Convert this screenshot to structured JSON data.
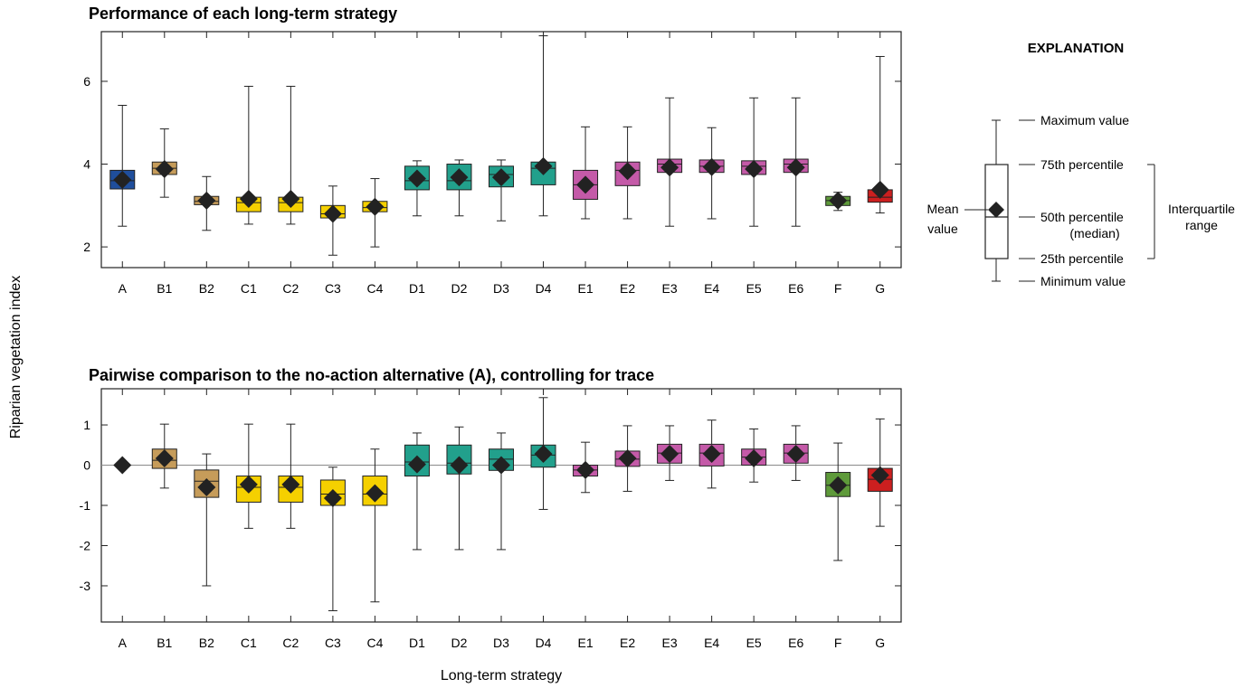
{
  "figure": {
    "ylabel": "Riparian vegetation index",
    "xlabel": "Long-term strategy"
  },
  "explanation": {
    "title": "EXPLANATION",
    "max_label": "Maximum value",
    "q3_label": "75th percentile",
    "median_label_1": "50th percentile",
    "median_label_2": "(median)",
    "q1_label": "25th percentile",
    "min_label": "Minimum value",
    "mean_label_1": "Mean",
    "mean_label_2": "value",
    "iqr_label_1": "Interquartile",
    "iqr_label_2": "range"
  },
  "colors": {
    "A": "#1f4e9c",
    "B": "#c69c5a",
    "C": "#f5d000",
    "D": "#22a08c",
    "E": "#c45aa8",
    "F": "#5e9a3a",
    "G": "#cc1f1f",
    "marker": "#222222"
  },
  "chart_data": [
    {
      "type": "box",
      "title": "Performance of each long-term strategy",
      "xlabel": "Long-term strategy",
      "ylabel": "Riparian vegetation index",
      "ylim": [
        1.5,
        7.2
      ],
      "yticks": [
        2,
        4,
        6
      ],
      "ytick_labels": [
        "2",
        "4",
        "6"
      ],
      "reference_line": null,
      "categories": [
        "A",
        "B1",
        "B2",
        "C1",
        "C2",
        "C3",
        "C4",
        "D1",
        "D2",
        "D3",
        "D4",
        "E1",
        "E2",
        "E3",
        "E4",
        "E5",
        "E6",
        "F",
        "G"
      ],
      "series": [
        {
          "category": "A",
          "group": "A",
          "min": 2.5,
          "q1": 3.4,
          "median": 3.6,
          "q3": 3.85,
          "max": 5.42,
          "mean": 3.62
        },
        {
          "category": "B1",
          "group": "B",
          "min": 3.2,
          "q1": 3.75,
          "median": 3.9,
          "q3": 4.05,
          "max": 4.85,
          "mean": 3.88
        },
        {
          "category": "B2",
          "group": "B",
          "min": 2.4,
          "q1": 3.02,
          "median": 3.1,
          "q3": 3.22,
          "max": 3.7,
          "mean": 3.12
        },
        {
          "category": "C1",
          "group": "C",
          "min": 2.55,
          "q1": 2.85,
          "median": 3.07,
          "q3": 3.2,
          "max": 5.88,
          "mean": 3.16
        },
        {
          "category": "C2",
          "group": "C",
          "min": 2.55,
          "q1": 2.85,
          "median": 3.07,
          "q3": 3.2,
          "max": 5.88,
          "mean": 3.16
        },
        {
          "category": "C3",
          "group": "C",
          "min": 1.8,
          "q1": 2.7,
          "median": 2.8,
          "q3": 3.0,
          "max": 3.47,
          "mean": 2.8
        },
        {
          "category": "C4",
          "group": "C",
          "min": 2.0,
          "q1": 2.85,
          "median": 2.95,
          "q3": 3.1,
          "max": 3.65,
          "mean": 2.97
        },
        {
          "category": "D1",
          "group": "D",
          "min": 2.75,
          "q1": 3.38,
          "median": 3.6,
          "q3": 3.95,
          "max": 4.08,
          "mean": 3.65
        },
        {
          "category": "D2",
          "group": "D",
          "min": 2.75,
          "q1": 3.38,
          "median": 3.6,
          "q3": 4.0,
          "max": 4.1,
          "mean": 3.68
        },
        {
          "category": "D3",
          "group": "D",
          "min": 2.63,
          "q1": 3.45,
          "median": 3.75,
          "q3": 3.95,
          "max": 4.1,
          "mean": 3.68
        },
        {
          "category": "D4",
          "group": "D",
          "min": 2.75,
          "q1": 3.5,
          "median": 3.9,
          "q3": 4.05,
          "max": 7.1,
          "mean": 3.95
        },
        {
          "category": "E1",
          "group": "E",
          "min": 2.68,
          "q1": 3.15,
          "median": 3.5,
          "q3": 3.85,
          "max": 4.9,
          "mean": 3.5
        },
        {
          "category": "E2",
          "group": "E",
          "min": 2.68,
          "q1": 3.48,
          "median": 3.85,
          "q3": 4.05,
          "max": 4.9,
          "mean": 3.83
        },
        {
          "category": "E3",
          "group": "E",
          "min": 2.5,
          "q1": 3.8,
          "median": 4.0,
          "q3": 4.12,
          "max": 5.6,
          "mean": 3.92
        },
        {
          "category": "E4",
          "group": "E",
          "min": 2.68,
          "q1": 3.8,
          "median": 3.95,
          "q3": 4.1,
          "max": 4.88,
          "mean": 3.93
        },
        {
          "category": "E5",
          "group": "E",
          "min": 2.5,
          "q1": 3.75,
          "median": 3.95,
          "q3": 4.08,
          "max": 5.6,
          "mean": 3.88
        },
        {
          "category": "E6",
          "group": "E",
          "min": 2.5,
          "q1": 3.8,
          "median": 4.0,
          "q3": 4.12,
          "max": 5.6,
          "mean": 3.92
        },
        {
          "category": "F",
          "group": "F",
          "min": 2.88,
          "q1": 3.0,
          "median": 3.12,
          "q3": 3.22,
          "max": 3.32,
          "mean": 3.12
        },
        {
          "category": "G",
          "group": "G",
          "min": 2.82,
          "q1": 3.08,
          "median": 3.2,
          "q3": 3.38,
          "max": 6.6,
          "mean": 3.38
        }
      ]
    },
    {
      "type": "box",
      "title": "Pairwise comparison to the no-action alternative (A), controlling for trace",
      "xlabel": "Long-term strategy",
      "ylabel": "Riparian vegetation index",
      "ylim": [
        -3.9,
        1.9
      ],
      "yticks": [
        1,
        0,
        -1,
        -2,
        -3
      ],
      "ytick_labels": [
        "1",
        "0",
        "-1",
        "-2",
        "-3"
      ],
      "reference_line": 0,
      "categories": [
        "A",
        "B1",
        "B2",
        "C1",
        "C2",
        "C3",
        "C4",
        "D1",
        "D2",
        "D3",
        "D4",
        "E1",
        "E2",
        "E3",
        "E4",
        "E5",
        "E6",
        "F",
        "G"
      ],
      "series": [
        {
          "category": "A",
          "group": "A",
          "min": 0,
          "q1": 0,
          "median": 0,
          "q3": 0,
          "max": 0,
          "mean": 0
        },
        {
          "category": "B1",
          "group": "B",
          "min": -0.57,
          "q1": -0.08,
          "median": 0.12,
          "q3": 0.4,
          "max": 1.02,
          "mean": 0.17
        },
        {
          "category": "B2",
          "group": "B",
          "min": -3.0,
          "q1": -0.8,
          "median": -0.4,
          "q3": -0.12,
          "max": 0.28,
          "mean": -0.55
        },
        {
          "category": "C1",
          "group": "C",
          "min": -1.57,
          "q1": -0.92,
          "median": -0.55,
          "q3": -0.27,
          "max": 1.02,
          "mean": -0.48
        },
        {
          "category": "C2",
          "group": "C",
          "min": -1.57,
          "q1": -0.92,
          "median": -0.55,
          "q3": -0.27,
          "max": 1.02,
          "mean": -0.48
        },
        {
          "category": "C3",
          "group": "C",
          "min": -3.62,
          "q1": -1.0,
          "median": -0.72,
          "q3": -0.37,
          "max": -0.05,
          "mean": -0.82
        },
        {
          "category": "C4",
          "group": "C",
          "min": -3.4,
          "q1": -1.0,
          "median": -0.72,
          "q3": -0.27,
          "max": 0.4,
          "mean": -0.7
        },
        {
          "category": "D1",
          "group": "D",
          "min": -2.1,
          "q1": -0.27,
          "median": 0.08,
          "q3": 0.5,
          "max": 0.8,
          "mean": 0.02
        },
        {
          "category": "D2",
          "group": "D",
          "min": -2.1,
          "q1": -0.22,
          "median": 0.05,
          "q3": 0.5,
          "max": 0.95,
          "mean": 0.0
        },
        {
          "category": "D3",
          "group": "D",
          "min": -2.1,
          "q1": -0.13,
          "median": 0.15,
          "q3": 0.4,
          "max": 0.8,
          "mean": 0.0
        },
        {
          "category": "D4",
          "group": "D",
          "min": -1.1,
          "q1": -0.05,
          "median": 0.25,
          "q3": 0.5,
          "max": 1.68,
          "mean": 0.28
        },
        {
          "category": "E1",
          "group": "E",
          "min": -0.68,
          "q1": -0.27,
          "median": -0.12,
          "q3": 0.0,
          "max": 0.57,
          "mean": -0.12
        },
        {
          "category": "E2",
          "group": "E",
          "min": -0.65,
          "q1": -0.03,
          "median": 0.15,
          "q3": 0.35,
          "max": 0.98,
          "mean": 0.17
        },
        {
          "category": "E3",
          "group": "E",
          "min": -0.38,
          "q1": 0.05,
          "median": 0.3,
          "q3": 0.52,
          "max": 0.98,
          "mean": 0.28
        },
        {
          "category": "E4",
          "group": "E",
          "min": -0.57,
          "q1": -0.02,
          "median": 0.3,
          "q3": 0.52,
          "max": 1.12,
          "mean": 0.28
        },
        {
          "category": "E5",
          "group": "E",
          "min": -0.42,
          "q1": 0.0,
          "median": 0.2,
          "q3": 0.4,
          "max": 0.9,
          "mean": 0.17
        },
        {
          "category": "E6",
          "group": "E",
          "min": -0.38,
          "q1": 0.05,
          "median": 0.3,
          "q3": 0.52,
          "max": 0.98,
          "mean": 0.28
        },
        {
          "category": "F",
          "group": "F",
          "min": -2.37,
          "q1": -0.78,
          "median": -0.5,
          "q3": -0.18,
          "max": 0.55,
          "mean": -0.5
        },
        {
          "category": "G",
          "group": "G",
          "min": -1.52,
          "q1": -0.65,
          "median": -0.35,
          "q3": -0.08,
          "max": 1.15,
          "mean": -0.25
        }
      ]
    }
  ]
}
